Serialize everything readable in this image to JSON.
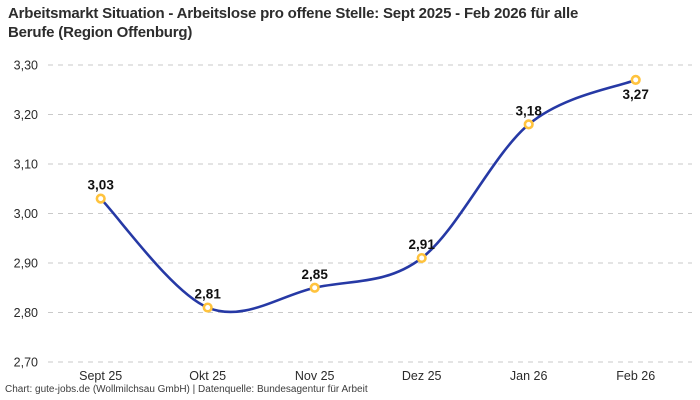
{
  "title": {
    "line1": "Arbeitsmarkt Situation - Arbeitslose pro offene Stelle: Sept 2025 - Feb 2026 für alle",
    "line2": "Berufe (Region Offenburg)",
    "full": "Arbeitsmarkt Situation - Arbeitslose pro offene Stelle: Sept 2025 - Feb 2026 für alle Berufe (Region Offenburg)"
  },
  "footer": "Chart: gute-jobs.de (Wollmilchsau GmbH) | Datenquelle: Bundesagentur für Arbeit",
  "colors": {
    "background": "#ffffff",
    "title_text": "#2d2d2d",
    "line": "#2639a5",
    "marker_ring": "#ffc33d",
    "marker_fill": "#ffffff",
    "gridline": "#c9c9c9",
    "tick_text": "#2b2b2b",
    "data_label_text": "#111111",
    "footer_text": "#3c3c3c"
  },
  "chart_data": {
    "type": "line",
    "title": "Arbeitsmarkt Situation - Arbeitslose pro offene Stelle: Sept 2025 - Feb 2026 für alle Berufe (Region Offenburg)",
    "categories": [
      "Sept 25",
      "Okt 25",
      "Nov 25",
      "Dez 25",
      "Jan 26",
      "Feb 26"
    ],
    "values": [
      3.03,
      2.81,
      2.85,
      2.91,
      3.18,
      3.27
    ],
    "value_labels": [
      "3,03",
      "2,81",
      "2,85",
      "2,91",
      "3,18",
      "3,27"
    ],
    "value_label_positions": [
      "above",
      "above",
      "above",
      "above",
      "above",
      "below"
    ],
    "xlabel": "",
    "ylabel": "",
    "ylim": [
      2.7,
      3.3
    ],
    "yticks": [
      3.3,
      3.2,
      3.1,
      3.0,
      2.9,
      2.8,
      2.7
    ],
    "ytick_labels": [
      "3,30",
      "3,20",
      "3,10",
      "3,00",
      "2,90",
      "2,80",
      "2,70"
    ],
    "grid": "horizontal-dashed",
    "legend": "none",
    "curve": "smooth-spline",
    "marker": "open-circle"
  }
}
